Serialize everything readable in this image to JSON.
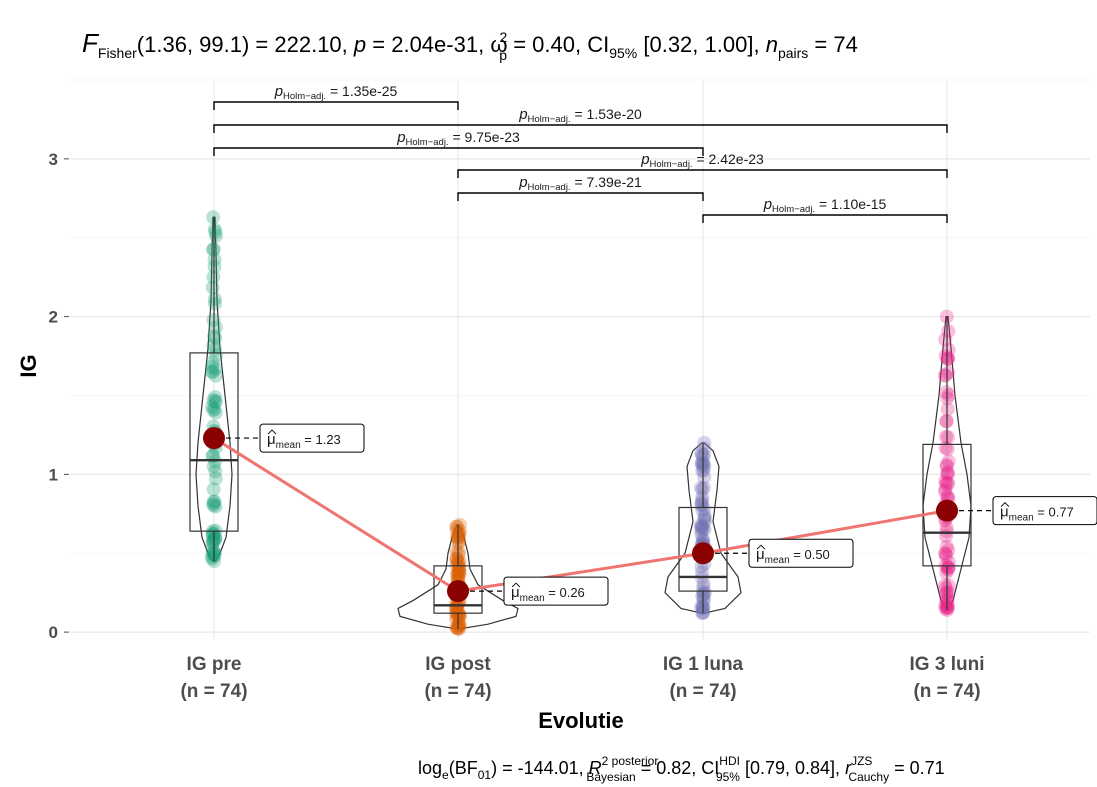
{
  "title": {
    "F_label": "F",
    "F_sub": "Fisher",
    "F_args": "(1.36, 99.1) = 222.10, ",
    "p_label": "p",
    "p_value": " = 2.04e-31, ",
    "omega": "ω",
    "omega_sup": "2",
    "omega_sub": "p",
    "omega_value": " = 0.40, CI",
    "ci_sub": "95%",
    "ci_value": " [0.32, 1.00], ",
    "n_label": "n",
    "n_sub": "pairs",
    "n_value": " = 74"
  },
  "caption": {
    "part1": "log",
    "part1_sub": "e",
    "part2": "(BF",
    "part2_sub": "01",
    "part3": ") = -144.01, ",
    "r2": "R",
    "r2_sup": "2 posterior",
    "r2_sub": "Bayesian",
    "r2_value": " = 0.82, CI",
    "ci_sup": "HDI",
    "ci_sub": "95%",
    "ci_value": " [0.79, 0.84], ",
    "r_label": "r",
    "r_sup": "JZS",
    "r_sub": "Cauchy",
    "r_value": " = 0.71"
  },
  "axes": {
    "xlabel": "Evolutie",
    "ylabel": "IG"
  },
  "chart_data": {
    "type": "box-violin",
    "title": "F Fisher(1.36, 99.1) = 222.10, p = 2.04e-31, ω²p = 0.40, CI95% [0.32, 1.00], npairs = 74",
    "xlabel": "Evolutie",
    "ylabel": "IG",
    "ylim": [
      -0.05,
      3.5
    ],
    "yticks": [
      0,
      1,
      2,
      3
    ],
    "grid": true,
    "categories": [
      "IG pre",
      "IG post",
      "IG 1 luna",
      "IG 3 luni"
    ],
    "n_labels": [
      "(n = 74)",
      "(n = 74)",
      "(n = 74)",
      "(n = 74)"
    ],
    "colors": [
      "#1b9e77",
      "#d95f02",
      "#7570b3",
      "#e7298a"
    ],
    "means": [
      1.23,
      0.26,
      0.5,
      0.77
    ],
    "mean_labels": [
      "= 1.23",
      "= 0.26",
      "= 0.50",
      "= 0.77"
    ],
    "boxes": [
      {
        "q1": 0.64,
        "median": 1.09,
        "q3": 1.77,
        "min": 0.45,
        "max": 2.63
      },
      {
        "q1": 0.12,
        "median": 0.17,
        "q3": 0.42,
        "min": 0.02,
        "max": 0.68
      },
      {
        "q1": 0.26,
        "median": 0.35,
        "q3": 0.79,
        "min": 0.12,
        "max": 1.2
      },
      {
        "q1": 0.42,
        "median": 0.63,
        "q3": 1.19,
        "min": 0.14,
        "max": 2.0
      }
    ],
    "comparisons": [
      {
        "from": 0,
        "to": 1,
        "p": "= 1.35e-25"
      },
      {
        "from": 0,
        "to": 3,
        "p": "= 1.53e-20"
      },
      {
        "from": 0,
        "to": 2,
        "p": "= 9.75e-23"
      },
      {
        "from": 1,
        "to": 3,
        "p": "= 2.42e-23"
      },
      {
        "from": 1,
        "to": 2,
        "p": "= 7.39e-21"
      },
      {
        "from": 2,
        "to": 3,
        "p": "= 1.10e-15"
      }
    ],
    "p_label": "p",
    "p_sub": "Holm−adj.",
    "mean_symbol": "μ",
    "mean_sub": "mean"
  }
}
